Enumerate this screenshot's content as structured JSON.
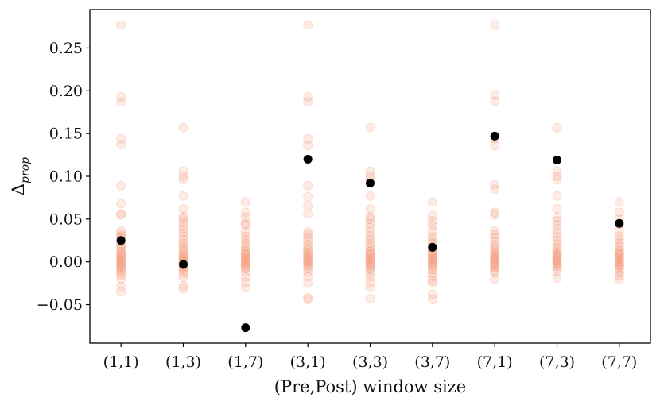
{
  "chart_data": {
    "type": "scatter",
    "title": "",
    "xlabel": "(Pre,Post) window size",
    "ylabel": "Δprop",
    "ylabel_main": "Δ",
    "ylabel_sub": "prop",
    "categories": [
      "(1,1)",
      "(1,3)",
      "(1,7)",
      "(3,1)",
      "(3,3)",
      "(3,7)",
      "(7,1)",
      "(7,3)",
      "(7,7)"
    ],
    "ylim": [
      -0.095,
      0.295
    ],
    "yticks": [
      -0.05,
      0.0,
      0.05,
      0.1,
      0.15,
      0.2,
      0.25
    ],
    "ytick_labels": [
      "−0.05",
      "0.00",
      "0.05",
      "0.10",
      "0.15",
      "0.20",
      "0.25"
    ],
    "grid": false,
    "legend": "none",
    "series": [
      {
        "kind": "individual",
        "color": "#f26b3a",
        "opacity": 0.13,
        "points": [
          [
            0.277,
            0.193,
            0.187,
            0.144,
            0.137,
            0.089,
            0.068,
            0.056,
            0.055,
            0.036,
            0.033,
            0.03,
            0.028,
            0.024,
            0.02,
            0.018,
            0.015,
            0.012,
            0.01,
            0.008,
            0.006,
            0.004,
            0.002,
            0.0,
            -0.002,
            -0.004,
            -0.006,
            -0.008,
            -0.01,
            -0.013,
            -0.016,
            -0.02,
            -0.029,
            -0.035
          ],
          [
            0.157,
            0.106,
            0.1,
            0.096,
            0.077,
            0.062,
            0.053,
            0.05,
            0.046,
            0.042,
            0.038,
            0.034,
            0.03,
            0.026,
            0.022,
            0.019,
            0.016,
            0.013,
            0.01,
            0.008,
            0.006,
            0.004,
            0.002,
            0.0,
            -0.002,
            -0.004,
            -0.006,
            -0.008,
            -0.011,
            -0.014,
            -0.018,
            -0.028,
            -0.032
          ],
          [
            0.07,
            0.058,
            0.052,
            0.045,
            0.043,
            0.035,
            0.03,
            0.026,
            0.022,
            0.018,
            0.015,
            0.012,
            0.01,
            0.008,
            0.006,
            0.004,
            0.002,
            0.0,
            -0.002,
            -0.004,
            -0.006,
            -0.008,
            -0.012,
            -0.018,
            -0.024,
            -0.03
          ],
          [
            0.277,
            0.193,
            0.187,
            0.144,
            0.136,
            0.089,
            0.076,
            0.065,
            0.056,
            0.035,
            0.032,
            0.028,
            0.024,
            0.02,
            0.017,
            0.014,
            0.011,
            0.009,
            0.007,
            0.005,
            0.003,
            0.001,
            -0.001,
            -0.003,
            -0.005,
            -0.008,
            -0.012,
            -0.017,
            -0.025,
            -0.042,
            -0.044
          ],
          [
            0.157,
            0.106,
            0.1,
            0.096,
            0.077,
            0.062,
            0.053,
            0.05,
            0.045,
            0.04,
            0.035,
            0.03,
            0.026,
            0.022,
            0.018,
            0.015,
            0.012,
            0.01,
            0.008,
            0.006,
            0.004,
            0.002,
            0.0,
            -0.002,
            -0.004,
            -0.006,
            -0.009,
            -0.013,
            -0.018,
            -0.024,
            -0.03,
            -0.043
          ],
          [
            0.07,
            0.054,
            0.048,
            0.043,
            0.036,
            0.03,
            0.026,
            0.022,
            0.018,
            0.015,
            0.012,
            0.01,
            0.008,
            0.006,
            0.004,
            0.002,
            0.0,
            -0.002,
            -0.004,
            -0.006,
            -0.009,
            -0.013,
            -0.017,
            -0.022,
            -0.025,
            -0.038,
            -0.044
          ],
          [
            0.277,
            0.195,
            0.188,
            0.144,
            0.136,
            0.09,
            0.085,
            0.058,
            0.055,
            0.036,
            0.032,
            0.028,
            0.024,
            0.02,
            0.017,
            0.014,
            0.011,
            0.009,
            0.007,
            0.005,
            0.003,
            0.001,
            -0.001,
            -0.003,
            -0.005,
            -0.007,
            -0.01,
            -0.013,
            -0.02
          ],
          [
            0.157,
            0.106,
            0.1,
            0.096,
            0.077,
            0.062,
            0.052,
            0.048,
            0.043,
            0.038,
            0.033,
            0.029,
            0.025,
            0.021,
            0.017,
            0.014,
            0.011,
            0.009,
            0.007,
            0.005,
            0.003,
            0.001,
            -0.001,
            -0.003,
            -0.005,
            -0.008,
            -0.011,
            -0.019
          ],
          [
            0.07,
            0.058,
            0.05,
            0.044,
            0.036,
            0.03,
            0.026,
            0.022,
            0.018,
            0.015,
            0.012,
            0.01,
            0.008,
            0.006,
            0.004,
            0.002,
            0.0,
            -0.002,
            -0.004,
            -0.006,
            -0.009,
            -0.013,
            -0.016,
            -0.02
          ]
        ]
      },
      {
        "kind": "mean",
        "color": "#000000",
        "values": [
          0.025,
          -0.003,
          -0.077,
          0.12,
          0.092,
          0.017,
          0.147,
          0.119,
          0.045
        ]
      }
    ]
  }
}
